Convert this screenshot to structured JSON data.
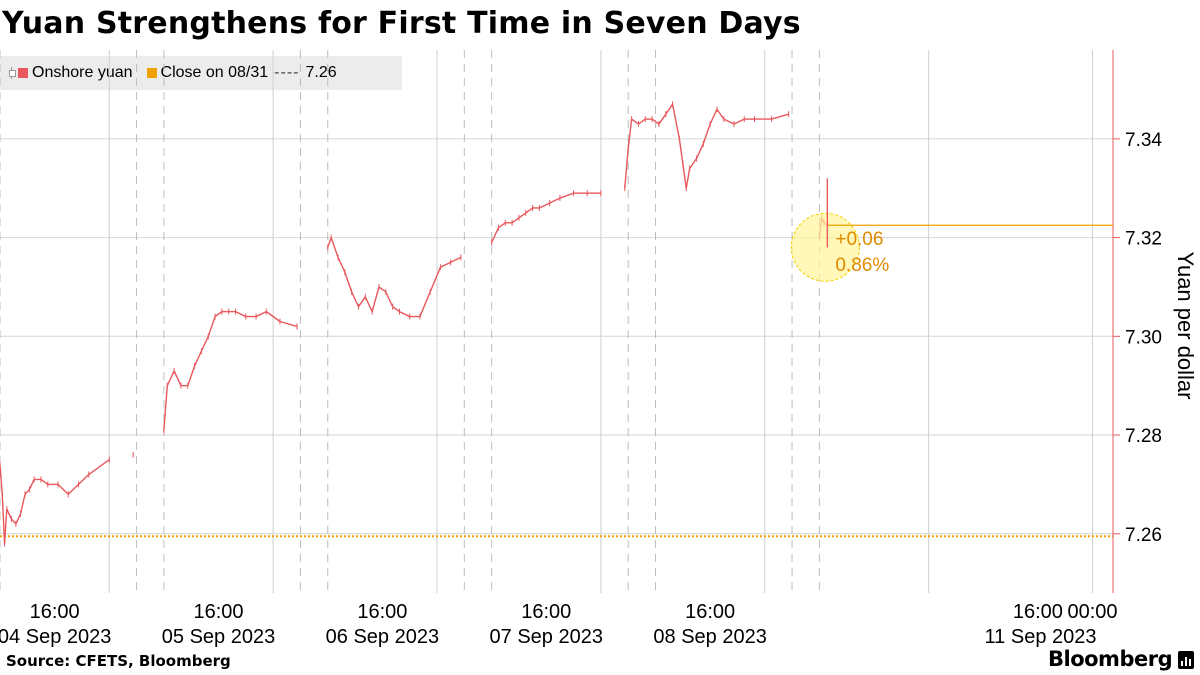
{
  "title": "Yuan Strengthens for First Time in Seven Days",
  "legend": {
    "series_label": "Onshore yuan",
    "close_label": "Close on 08/31",
    "close_dash": "----",
    "close_value": "7.26"
  },
  "source": "Source: CFETS, Bloomberg",
  "brand": "Bloomberg",
  "colors": {
    "series": "#e8585c",
    "close_line": "#f0a000",
    "highlight_fill": "#fff59a",
    "annotation_text": "#e08a00",
    "grid": "#d6d6d6",
    "axis": "#e8585c"
  },
  "chart_data": {
    "type": "line",
    "ylabel": "Yuan per dollar",
    "ylim": [
      7.248,
      7.358
    ],
    "y_ticks": [
      {
        "value": 7.26,
        "label": "7.26"
      },
      {
        "value": 7.28,
        "label": "7.28"
      },
      {
        "value": 7.3,
        "label": "7.30"
      },
      {
        "value": 7.32,
        "label": "7.32"
      },
      {
        "value": 7.34,
        "label": "7.34"
      }
    ],
    "x_range": [
      "2023-09-04T08:00",
      "2023-09-11T03:00"
    ],
    "x_tick_labels": [
      {
        "time": "2023-09-04T16:00",
        "label": "16:00",
        "date": "04 Sep 2023"
      },
      {
        "time": "2023-09-05T16:00",
        "label": "16:00",
        "date": "05 Sep 2023"
      },
      {
        "time": "2023-09-06T16:00",
        "label": "16:00",
        "date": "06 Sep 2023"
      },
      {
        "time": "2023-09-07T16:00",
        "label": "16:00",
        "date": "07 Sep 2023"
      },
      {
        "time": "2023-09-08T16:00",
        "label": "16:00",
        "date": "08 Sep 2023"
      },
      {
        "time": "2023-09-10T16:00",
        "label": "16:00",
        "date": ""
      },
      {
        "time": "2023-09-11T00:00",
        "label": "00:00",
        "date": "11 Sep 2023"
      }
    ],
    "session_breaks": [
      "2023-09-04T08:00",
      "2023-09-05T04:00",
      "2023-09-05T08:00",
      "2023-09-06T04:00",
      "2023-09-06T08:00",
      "2023-09-07T04:00",
      "2023-09-07T08:00",
      "2023-09-08T04:00",
      "2023-09-08T08:00",
      "2023-09-09T04:00",
      "2023-09-09T08:00"
    ],
    "day_lines": [
      "2023-09-05T00:00",
      "2023-09-06T00:00",
      "2023-09-07T00:00",
      "2023-09-08T00:00",
      "2023-09-09T00:00",
      "2023-09-10T00:00",
      "2023-09-11T00:00"
    ],
    "reference_line": {
      "name": "Close on 08/31",
      "value": 7.2595
    },
    "series": [
      {
        "name": "Onshore yuan",
        "points": [
          [
            "2023-09-04T08:00",
            7.274
          ],
          [
            "2023-09-04T08:20",
            7.268
          ],
          [
            "2023-09-04T08:40",
            7.258
          ],
          [
            "2023-09-04T09:00",
            7.265
          ],
          [
            "2023-09-04T09:40",
            7.263
          ],
          [
            "2023-09-04T10:20",
            7.262
          ],
          [
            "2023-09-04T11:00",
            7.264
          ],
          [
            "2023-09-04T11:40",
            7.268
          ],
          [
            "2023-09-04T12:20",
            7.269
          ],
          [
            "2023-09-04T13:00",
            7.271
          ],
          [
            "2023-09-04T14:00",
            7.271
          ],
          [
            "2023-09-04T15:00",
            7.27
          ],
          [
            "2023-09-04T16:30",
            7.27
          ],
          [
            "2023-09-04T18:00",
            7.268
          ],
          [
            "2023-09-04T19:30",
            7.27
          ],
          [
            "2023-09-04T21:00",
            7.272
          ],
          [
            "2023-09-05T00:00",
            7.275
          ],
          [
            "2023-09-05T03:30",
            7.276
          ],
          [
            "2023-09-05T08:00",
            7.281
          ],
          [
            "2023-09-05T08:30",
            7.29
          ],
          [
            "2023-09-05T09:30",
            7.293
          ],
          [
            "2023-09-05T10:30",
            7.29
          ],
          [
            "2023-09-05T11:30",
            7.29
          ],
          [
            "2023-09-05T12:30",
            7.294
          ],
          [
            "2023-09-05T13:30",
            7.297
          ],
          [
            "2023-09-05T14:30",
            7.3
          ],
          [
            "2023-09-05T15:30",
            7.304
          ],
          [
            "2023-09-05T16:30",
            7.305
          ],
          [
            "2023-09-05T17:30",
            7.305
          ],
          [
            "2023-09-05T18:30",
            7.305
          ],
          [
            "2023-09-05T20:00",
            7.304
          ],
          [
            "2023-09-05T21:30",
            7.304
          ],
          [
            "2023-09-05T23:00",
            7.305
          ],
          [
            "2023-09-06T01:00",
            7.303
          ],
          [
            "2023-09-06T03:30",
            7.302
          ],
          [
            "2023-09-06T08:00",
            7.318
          ],
          [
            "2023-09-06T08:30",
            7.32
          ],
          [
            "2023-09-06T09:30",
            7.316
          ],
          [
            "2023-09-06T10:30",
            7.313
          ],
          [
            "2023-09-06T11:30",
            7.309
          ],
          [
            "2023-09-06T12:30",
            7.306
          ],
          [
            "2023-09-06T13:30",
            7.308
          ],
          [
            "2023-09-06T14:30",
            7.305
          ],
          [
            "2023-09-06T15:30",
            7.31
          ],
          [
            "2023-09-06T16:30",
            7.309
          ],
          [
            "2023-09-06T17:30",
            7.306
          ],
          [
            "2023-09-06T18:30",
            7.305
          ],
          [
            "2023-09-06T20:00",
            7.304
          ],
          [
            "2023-09-06T21:30",
            7.304
          ],
          [
            "2023-09-06T23:00",
            7.309
          ],
          [
            "2023-09-07T00:30",
            7.314
          ],
          [
            "2023-09-07T02:00",
            7.315
          ],
          [
            "2023-09-07T03:30",
            7.316
          ],
          [
            "2023-09-07T08:00",
            7.319
          ],
          [
            "2023-09-07T09:00",
            7.322
          ],
          [
            "2023-09-07T10:00",
            7.323
          ],
          [
            "2023-09-07T11:00",
            7.323
          ],
          [
            "2023-09-07T12:00",
            7.324
          ],
          [
            "2023-09-07T13:00",
            7.325
          ],
          [
            "2023-09-07T14:00",
            7.326
          ],
          [
            "2023-09-07T15:00",
            7.326
          ],
          [
            "2023-09-07T16:30",
            7.327
          ],
          [
            "2023-09-07T18:00",
            7.328
          ],
          [
            "2023-09-07T20:00",
            7.329
          ],
          [
            "2023-09-07T22:00",
            7.329
          ],
          [
            "2023-09-08T00:00",
            7.329
          ],
          [
            "2023-09-08T03:30",
            7.33
          ],
          [
            "2023-09-08T04:00",
            7.338
          ],
          [
            "2023-09-08T04:30",
            7.344
          ],
          [
            "2023-09-08T05:30",
            7.343
          ],
          [
            "2023-09-08T06:30",
            7.344
          ],
          [
            "2023-09-08T07:30",
            7.344
          ],
          [
            "2023-09-08T08:30",
            7.343
          ],
          [
            "2023-09-08T09:30",
            7.345
          ],
          [
            "2023-09-08T10:30",
            7.347
          ],
          [
            "2023-09-08T11:30",
            7.34
          ],
          [
            "2023-09-08T12:00",
            7.335
          ],
          [
            "2023-09-08T12:30",
            7.33
          ],
          [
            "2023-09-08T13:00",
            7.334
          ],
          [
            "2023-09-08T14:00",
            7.336
          ],
          [
            "2023-09-08T15:00",
            7.339
          ],
          [
            "2023-09-08T16:00",
            7.343
          ],
          [
            "2023-09-08T17:00",
            7.346
          ],
          [
            "2023-09-08T18:00",
            7.344
          ],
          [
            "2023-09-08T19:30",
            7.343
          ],
          [
            "2023-09-08T21:00",
            7.344
          ],
          [
            "2023-09-08T22:30",
            7.344
          ],
          [
            "2023-09-09T01:00",
            7.344
          ],
          [
            "2023-09-09T03:30",
            7.345
          ],
          [
            "2023-09-09T08:00",
            7.32
          ],
          [
            "2023-09-09T08:20",
            7.324
          ],
          [
            "2023-09-09T08:40",
            7.323
          ],
          [
            "2023-09-09T09:10",
            7.3225
          ]
        ]
      }
    ],
    "annotation": {
      "time": "2023-09-09T09:10",
      "value": 7.3225,
      "change": "+0.06",
      "pct": "0.86%"
    }
  }
}
